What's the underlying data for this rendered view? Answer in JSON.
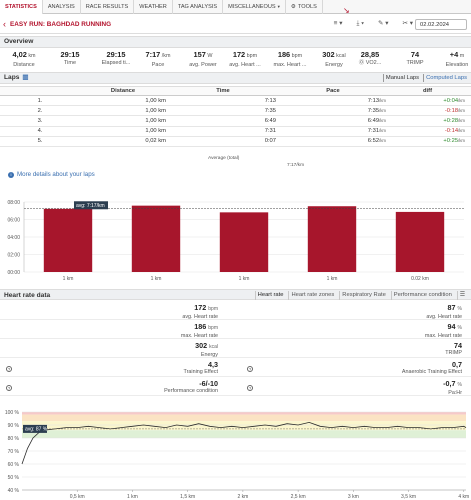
{
  "tabs": [
    {
      "label": "STATISTICS",
      "active": true
    },
    {
      "label": "ANALYSIS",
      "active": false
    },
    {
      "label": "RACE RESULTS",
      "active": false
    },
    {
      "label": "WEATHER",
      "active": false
    },
    {
      "label": "TAG ANALYSIS",
      "active": false
    },
    {
      "label": "MISCELLANEOUS",
      "active": false
    },
    {
      "label": "TOOLS",
      "active": false
    }
  ],
  "header": {
    "back": "‹",
    "title": "EASY RUN: BAGHDAD RUNNING",
    "date": "02.02.2024",
    "actions": [
      "≡ ▾",
      "⤓ ▾",
      "✎ ▾",
      "✂ ▾"
    ]
  },
  "overview": {
    "title": "Overview",
    "items": [
      {
        "value": "4,02",
        "unit": "km",
        "label": "Distance"
      },
      {
        "value": "29:15",
        "unit": "",
        "label": "Time"
      },
      {
        "value": "29:15",
        "unit": "",
        "label": "Elapsed ti..."
      },
      {
        "value": "7:17",
        "unit": "/km",
        "label": "Pace"
      },
      {
        "value": "157",
        "unit": "W",
        "label": "avg. Power"
      },
      {
        "value": "172",
        "unit": "bpm",
        "label": "avg. Heart ..."
      },
      {
        "value": "186",
        "unit": "bpm",
        "label": "max. Heart ..."
      },
      {
        "value": "302",
        "unit": "kcal",
        "label": "Energy"
      },
      {
        "value": "28,85",
        "unit": "",
        "label": "⓪ VO2..."
      },
      {
        "value": "74",
        "unit": "",
        "label": "TRIMP"
      },
      {
        "value": "+4",
        "unit": "m",
        "label": "Elevation"
      }
    ]
  },
  "laps": {
    "title": "Laps",
    "manual_label": "Manual Laps",
    "computed_label": "Computed Laps",
    "columns": [
      "",
      "Distance",
      "Time",
      "Pace",
      "diff"
    ],
    "rows": [
      {
        "n": "1.",
        "distance": "1,00 km",
        "time": "7:13",
        "pace": "7:13",
        "diff": "+0:04"
      },
      {
        "n": "2.",
        "distance": "1,00 km",
        "time": "7:35",
        "pace": "7:35",
        "diff": "-0:18"
      },
      {
        "n": "3.",
        "distance": "1,00 km",
        "time": "6:49",
        "pace": "6:49",
        "diff": "+0:28"
      },
      {
        "n": "4.",
        "distance": "1,00 km",
        "time": "7:31",
        "pace": "7:31",
        "diff": "-0:14"
      },
      {
        "n": "5.",
        "distance": "0,02 km",
        "time": "0:07",
        "pace": "6:52",
        "diff": "+0:25"
      }
    ],
    "pace_unit": "/km",
    "avg_label": "Average (total)",
    "avg_pace": "7:17/km",
    "more_details": "More details about your laps"
  },
  "chart_data": [
    {
      "type": "bar",
      "categories": [
        "1 km",
        "1 km",
        "1 km",
        "1 km",
        "0.02 km"
      ],
      "values_seconds": [
        433,
        455,
        409,
        451,
        412
      ],
      "values": [
        "7:13",
        "7:35",
        "6:49",
        "7:31",
        "6:52"
      ],
      "ylim_seconds": [
        0,
        480
      ],
      "yticks": [
        "00:00",
        "02:00",
        "04:00",
        "06:00",
        "08:00"
      ],
      "avg_label": "avg: 7:17/km",
      "avg_seconds": 437,
      "colors": {
        "bar": "#a7162c",
        "grid": "#e4e4e4"
      }
    },
    {
      "type": "line",
      "title": "",
      "x": [
        0,
        0.05,
        0.1,
        0.15,
        0.2,
        0.3,
        0.4,
        0.5,
        0.6,
        0.7,
        0.8,
        0.9,
        1.0,
        1.1,
        1.2,
        1.3,
        1.4,
        1.5,
        1.6,
        1.7,
        1.8,
        1.9,
        2.0,
        2.1,
        2.2,
        2.3,
        2.4,
        2.5,
        2.6,
        2.7,
        2.8,
        2.9,
        3.0,
        3.1,
        3.2,
        3.3,
        3.4,
        3.5,
        3.6,
        3.7,
        3.8,
        3.9,
        4.0,
        4.02
      ],
      "y": [
        60,
        72,
        80,
        84,
        86,
        87,
        88,
        88,
        89,
        88,
        87,
        88,
        89,
        90,
        89,
        88,
        90,
        89,
        91,
        89,
        88,
        89,
        88,
        89,
        90,
        89,
        91,
        90,
        92,
        89,
        88,
        89,
        88,
        89,
        88,
        88,
        89,
        88,
        88,
        87,
        88,
        88,
        89,
        88
      ],
      "ylim": [
        40,
        100
      ],
      "yticks": [
        "40 %",
        "50 %",
        "60 %",
        "70 %",
        "80 %",
        "90 %",
        "100 %"
      ],
      "xticks": [
        "0,5 km",
        "1 km",
        "1,5 km",
        "2 km",
        "2,5 km",
        "3 km",
        "3,5 km",
        "4 km"
      ],
      "avg_label": "avg: 87 %",
      "avg_value": 87,
      "colors": {
        "line": "#2b2b2b",
        "zone_red": "#f6c9c9",
        "zone_orange": "#fbe3c4",
        "zone_yellow": "#fbf6cc",
        "zone_green": "#dff0d6"
      }
    }
  ],
  "heart_rate": {
    "title": "Heart rate data",
    "tabs": [
      "Heart rate",
      "Heart rate zones",
      "Respiratory Rate",
      "Performance condition",
      "☰"
    ],
    "rows": [
      {
        "left": {
          "value": "172",
          "unit": "bpm",
          "label": "avg. Heart rate"
        },
        "right": {
          "value": "87",
          "unit": "%",
          "label": "avg. Heart rate"
        }
      },
      {
        "left": {
          "value": "186",
          "unit": "bpm",
          "label": "max. Heart rate"
        },
        "right": {
          "value": "94",
          "unit": "%",
          "label": "max. Heart rate"
        }
      },
      {
        "left": {
          "value": "302",
          "unit": "kcal",
          "label": "Energy"
        },
        "right": {
          "value": "74",
          "unit": "",
          "label": "TRIMP"
        }
      },
      {
        "left": {
          "value": "4,3",
          "unit": "",
          "label": "Training Effect"
        },
        "right": {
          "value": "0,7",
          "unit": "",
          "label": "Anaerobic Training Effect"
        }
      },
      {
        "left": {
          "value": "-6/-10",
          "unit": "",
          "label": "Performance condition"
        },
        "right": {
          "value": "-0,7",
          "unit": "%",
          "label": "Pa:Hr"
        }
      }
    ]
  }
}
